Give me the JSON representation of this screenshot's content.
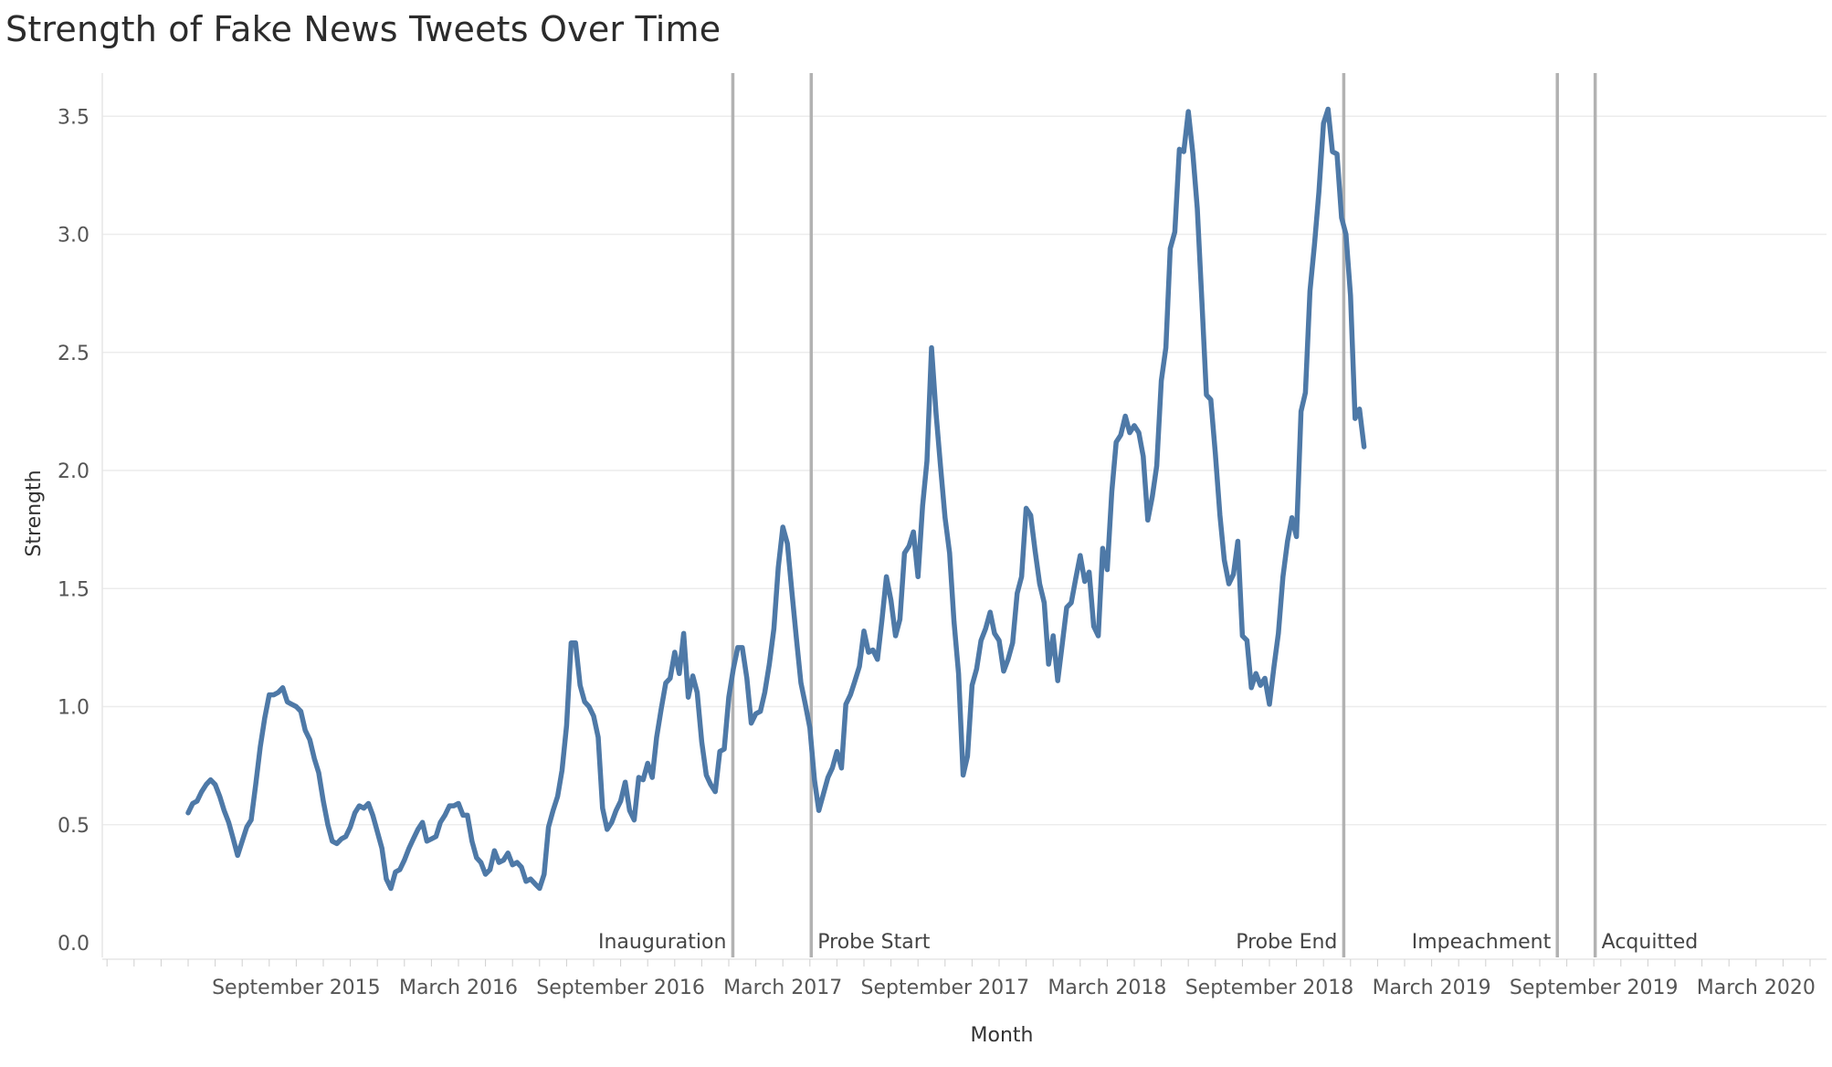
{
  "chart_data": {
    "type": "line",
    "title": "Strength of Fake News Tweets Over Time",
    "xlabel": "Month",
    "ylabel": "Strength",
    "ylim": [
      0,
      3.7
    ],
    "y_ticks": [
      "0.0",
      "0.5",
      "1.0",
      "1.5",
      "2.0",
      "2.5",
      "3.0",
      "3.5"
    ],
    "x_ticks": [
      {
        "label": "September 2015",
        "month": 4
      },
      {
        "label": "March 2016",
        "month": 10
      },
      {
        "label": "September 2016",
        "month": 16
      },
      {
        "label": "March 2017",
        "month": 22
      },
      {
        "label": "September 2017",
        "month": 28
      },
      {
        "label": "March 2018",
        "month": 34
      },
      {
        "label": "September 2018",
        "month": 40
      },
      {
        "label": "March 2019",
        "month": 46
      },
      {
        "label": "September 2019",
        "month": 52
      },
      {
        "label": "March 2020",
        "month": 58
      }
    ],
    "x_range_months": [
      -3,
      61
    ],
    "gridlines": "horizontal",
    "color": "#4e79a7",
    "annotations": [
      {
        "label": "Inauguration",
        "month": 20.15,
        "side": "left"
      },
      {
        "label": "Probe Start",
        "month": 23.05,
        "side": "right"
      },
      {
        "label": "Probe End",
        "month": 42.75,
        "side": "left"
      },
      {
        "label": "Impeachment",
        "month": 50.65,
        "side": "left"
      },
      {
        "label": "Acquitted",
        "month": 52.05,
        "side": "right"
      }
    ],
    "series": [
      {
        "points": [
          [
            0.0,
            0.55
          ],
          [
            0.17,
            0.59
          ],
          [
            0.33,
            0.6
          ],
          [
            0.5,
            0.64
          ],
          [
            0.67,
            0.67
          ],
          [
            0.83,
            0.69
          ],
          [
            1.0,
            0.67
          ],
          [
            1.17,
            0.62
          ],
          [
            1.33,
            0.56
          ],
          [
            1.5,
            0.51
          ],
          [
            1.67,
            0.44
          ],
          [
            1.83,
            0.37
          ],
          [
            2.0,
            0.43
          ],
          [
            2.17,
            0.49
          ],
          [
            2.33,
            0.52
          ],
          [
            2.5,
            0.67
          ],
          [
            2.67,
            0.83
          ],
          [
            2.83,
            0.95
          ],
          [
            3.0,
            1.05
          ],
          [
            3.17,
            1.05
          ],
          [
            3.33,
            1.06
          ],
          [
            3.5,
            1.08
          ],
          [
            3.67,
            1.02
          ],
          [
            3.83,
            1.01
          ],
          [
            4.0,
            1.0
          ],
          [
            4.17,
            0.98
          ],
          [
            4.33,
            0.9
          ],
          [
            4.5,
            0.86
          ],
          [
            4.67,
            0.78
          ],
          [
            4.83,
            0.72
          ],
          [
            5.0,
            0.6
          ],
          [
            5.17,
            0.5
          ],
          [
            5.33,
            0.43
          ],
          [
            5.5,
            0.42
          ],
          [
            5.67,
            0.44
          ],
          [
            5.83,
            0.45
          ],
          [
            6.0,
            0.49
          ],
          [
            6.17,
            0.55
          ],
          [
            6.33,
            0.58
          ],
          [
            6.5,
            0.57
          ],
          [
            6.67,
            0.59
          ],
          [
            6.83,
            0.54
          ],
          [
            7.0,
            0.47
          ],
          [
            7.17,
            0.4
          ],
          [
            7.33,
            0.27
          ],
          [
            7.5,
            0.23
          ],
          [
            7.67,
            0.3
          ],
          [
            7.83,
            0.31
          ],
          [
            8.0,
            0.35
          ],
          [
            8.17,
            0.4
          ],
          [
            8.33,
            0.44
          ],
          [
            8.5,
            0.48
          ],
          [
            8.67,
            0.51
          ],
          [
            8.83,
            0.43
          ],
          [
            9.0,
            0.44
          ],
          [
            9.17,
            0.45
          ],
          [
            9.33,
            0.51
          ],
          [
            9.5,
            0.54
          ],
          [
            9.67,
            0.58
          ],
          [
            9.83,
            0.58
          ],
          [
            10.0,
            0.59
          ],
          [
            10.17,
            0.54
          ],
          [
            10.33,
            0.54
          ],
          [
            10.5,
            0.43
          ],
          [
            10.67,
            0.36
          ],
          [
            10.83,
            0.34
          ],
          [
            11.0,
            0.29
          ],
          [
            11.17,
            0.31
          ],
          [
            11.33,
            0.39
          ],
          [
            11.5,
            0.34
          ],
          [
            11.67,
            0.35
          ],
          [
            11.83,
            0.38
          ],
          [
            12.0,
            0.33
          ],
          [
            12.17,
            0.34
          ],
          [
            12.33,
            0.32
          ],
          [
            12.5,
            0.26
          ],
          [
            12.67,
            0.27
          ],
          [
            12.83,
            0.25
          ],
          [
            13.0,
            0.23
          ],
          [
            13.17,
            0.29
          ],
          [
            13.33,
            0.49
          ],
          [
            13.5,
            0.56
          ],
          [
            13.67,
            0.62
          ],
          [
            13.83,
            0.73
          ],
          [
            14.0,
            0.92
          ],
          [
            14.17,
            1.27
          ],
          [
            14.33,
            1.27
          ],
          [
            14.5,
            1.09
          ],
          [
            14.67,
            1.02
          ],
          [
            14.83,
            1.0
          ],
          [
            15.0,
            0.96
          ],
          [
            15.17,
            0.87
          ],
          [
            15.33,
            0.57
          ],
          [
            15.5,
            0.48
          ],
          [
            15.67,
            0.51
          ],
          [
            15.83,
            0.56
          ],
          [
            16.0,
            0.6
          ],
          [
            16.17,
            0.68
          ],
          [
            16.33,
            0.56
          ],
          [
            16.5,
            0.52
          ],
          [
            16.67,
            0.7
          ],
          [
            16.83,
            0.69
          ],
          [
            17.0,
            0.76
          ],
          [
            17.17,
            0.7
          ],
          [
            17.33,
            0.87
          ],
          [
            17.5,
            0.99
          ],
          [
            17.67,
            1.1
          ],
          [
            17.83,
            1.12
          ],
          [
            18.0,
            1.23
          ],
          [
            18.17,
            1.14
          ],
          [
            18.33,
            1.31
          ],
          [
            18.5,
            1.04
          ],
          [
            18.67,
            1.13
          ],
          [
            18.83,
            1.06
          ],
          [
            19.0,
            0.85
          ],
          [
            19.17,
            0.71
          ],
          [
            19.33,
            0.67
          ],
          [
            19.5,
            0.64
          ],
          [
            19.67,
            0.81
          ],
          [
            19.83,
            0.82
          ],
          [
            20.0,
            1.04
          ],
          [
            20.17,
            1.16
          ],
          [
            20.33,
            1.25
          ],
          [
            20.5,
            1.25
          ],
          [
            20.67,
            1.12
          ],
          [
            20.83,
            0.93
          ],
          [
            21.0,
            0.97
          ],
          [
            21.17,
            0.98
          ],
          [
            21.33,
            1.06
          ],
          [
            21.5,
            1.18
          ],
          [
            21.67,
            1.33
          ],
          [
            21.83,
            1.59
          ],
          [
            22.0,
            1.76
          ],
          [
            22.17,
            1.69
          ],
          [
            22.33,
            1.49
          ],
          [
            22.5,
            1.29
          ],
          [
            22.67,
            1.1
          ],
          [
            22.83,
            1.01
          ],
          [
            23.0,
            0.91
          ],
          [
            23.17,
            0.69
          ],
          [
            23.33,
            0.56
          ],
          [
            23.5,
            0.63
          ],
          [
            23.67,
            0.7
          ],
          [
            23.83,
            0.74
          ],
          [
            24.0,
            0.81
          ],
          [
            24.17,
            0.74
          ],
          [
            24.33,
            1.01
          ],
          [
            24.5,
            1.05
          ],
          [
            24.67,
            1.11
          ],
          [
            24.83,
            1.17
          ],
          [
            25.0,
            1.32
          ],
          [
            25.17,
            1.23
          ],
          [
            25.33,
            1.24
          ],
          [
            25.5,
            1.2
          ],
          [
            25.67,
            1.37
          ],
          [
            25.83,
            1.55
          ],
          [
            26.0,
            1.45
          ],
          [
            26.17,
            1.3
          ],
          [
            26.33,
            1.37
          ],
          [
            26.5,
            1.65
          ],
          [
            26.67,
            1.68
          ],
          [
            26.83,
            1.74
          ],
          [
            27.0,
            1.55
          ],
          [
            27.17,
            1.85
          ],
          [
            27.33,
            2.04
          ],
          [
            27.5,
            2.52
          ],
          [
            27.67,
            2.24
          ],
          [
            27.83,
            2.02
          ],
          [
            28.0,
            1.8
          ],
          [
            28.17,
            1.65
          ],
          [
            28.33,
            1.36
          ],
          [
            28.5,
            1.14
          ],
          [
            28.67,
            0.71
          ],
          [
            28.83,
            0.79
          ],
          [
            29.0,
            1.09
          ],
          [
            29.17,
            1.16
          ],
          [
            29.33,
            1.28
          ],
          [
            29.5,
            1.33
          ],
          [
            29.67,
            1.4
          ],
          [
            29.83,
            1.31
          ],
          [
            30.0,
            1.28
          ],
          [
            30.17,
            1.15
          ],
          [
            30.33,
            1.2
          ],
          [
            30.5,
            1.27
          ],
          [
            30.67,
            1.48
          ],
          [
            30.83,
            1.55
          ],
          [
            31.0,
            1.84
          ],
          [
            31.17,
            1.81
          ],
          [
            31.33,
            1.66
          ],
          [
            31.5,
            1.52
          ],
          [
            31.67,
            1.44
          ],
          [
            31.83,
            1.18
          ],
          [
            32.0,
            1.3
          ],
          [
            32.17,
            1.11
          ],
          [
            32.33,
            1.26
          ],
          [
            32.5,
            1.42
          ],
          [
            32.67,
            1.44
          ],
          [
            32.83,
            1.54
          ],
          [
            33.0,
            1.64
          ],
          [
            33.17,
            1.53
          ],
          [
            33.33,
            1.57
          ],
          [
            33.5,
            1.34
          ],
          [
            33.67,
            1.3
          ],
          [
            33.83,
            1.67
          ],
          [
            34.0,
            1.58
          ],
          [
            34.17,
            1.91
          ],
          [
            34.33,
            2.12
          ],
          [
            34.5,
            2.15
          ],
          [
            34.67,
            2.23
          ],
          [
            34.83,
            2.16
          ],
          [
            35.0,
            2.19
          ],
          [
            35.17,
            2.16
          ],
          [
            35.33,
            2.06
          ],
          [
            35.5,
            1.79
          ],
          [
            35.67,
            1.89
          ],
          [
            35.83,
            2.02
          ],
          [
            36.0,
            2.38
          ],
          [
            36.17,
            2.52
          ],
          [
            36.33,
            2.94
          ],
          [
            36.5,
            3.01
          ],
          [
            36.67,
            3.36
          ],
          [
            36.83,
            3.35
          ],
          [
            37.0,
            3.52
          ],
          [
            37.17,
            3.34
          ],
          [
            37.33,
            3.11
          ],
          [
            37.5,
            2.72
          ],
          [
            37.67,
            2.32
          ],
          [
            37.83,
            2.3
          ],
          [
            38.0,
            2.07
          ],
          [
            38.17,
            1.81
          ],
          [
            38.33,
            1.62
          ],
          [
            38.5,
            1.52
          ],
          [
            38.67,
            1.56
          ],
          [
            38.83,
            1.7
          ],
          [
            39.0,
            1.3
          ],
          [
            39.17,
            1.28
          ],
          [
            39.33,
            1.08
          ],
          [
            39.5,
            1.14
          ],
          [
            39.67,
            1.09
          ],
          [
            39.83,
            1.12
          ],
          [
            40.0,
            1.01
          ],
          [
            40.17,
            1.17
          ],
          [
            40.33,
            1.31
          ],
          [
            40.5,
            1.55
          ],
          [
            40.67,
            1.7
          ],
          [
            40.83,
            1.8
          ],
          [
            41.0,
            1.72
          ],
          [
            41.17,
            2.25
          ],
          [
            41.33,
            2.33
          ],
          [
            41.5,
            2.76
          ],
          [
            41.67,
            2.96
          ],
          [
            41.83,
            3.18
          ],
          [
            42.0,
            3.47
          ],
          [
            42.17,
            3.53
          ],
          [
            42.33,
            3.35
          ],
          [
            42.5,
            3.34
          ],
          [
            42.67,
            3.07
          ],
          [
            42.83,
            3.0
          ],
          [
            43.0,
            2.74
          ],
          [
            43.17,
            2.22
          ],
          [
            43.33,
            2.26
          ],
          [
            43.5,
            2.1
          ]
        ]
      }
    ]
  }
}
